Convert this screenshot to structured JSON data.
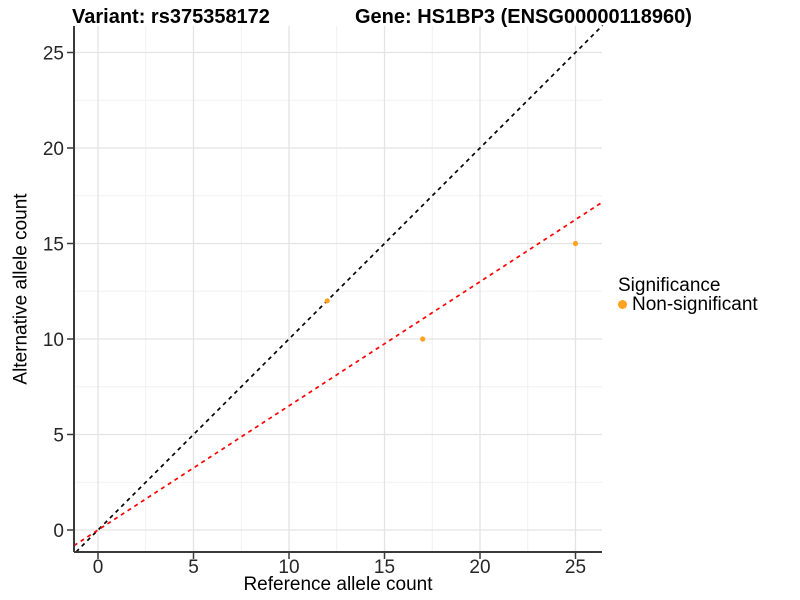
{
  "header": {
    "variant_title": "Variant: rs375358172",
    "gene_title": "Gene: HS1BP3 (ENSG00000118960)"
  },
  "legend": {
    "title": "Significance",
    "items": [
      {
        "label": "Non-significant",
        "color": "#FFA320"
      }
    ]
  },
  "chart_data": {
    "type": "scatter",
    "title": "Variant: rs375358172 — Gene: HS1BP3 (ENSG00000118960)",
    "xlabel": "Reference allele count",
    "ylabel": "Alternative allele count",
    "x_ticks": [
      0,
      5,
      10,
      15,
      20,
      25
    ],
    "y_ticks": [
      0,
      5,
      10,
      15,
      20,
      25
    ],
    "xlim": [
      -1.26,
      26.42
    ],
    "ylim": [
      -1.15,
      26.42
    ],
    "grid": true,
    "legend_position": "right",
    "series": [
      {
        "name": "Non-significant",
        "color": "#FFA320",
        "points": [
          [
            12,
            12
          ],
          [
            17,
            10
          ],
          [
            25,
            15
          ]
        ]
      }
    ],
    "reference_lines": [
      {
        "name": "identity-line",
        "slope": 1,
        "intercept": 0,
        "color": "#000000",
        "style": "dashed"
      },
      {
        "name": "expected-ratio-line",
        "slope": 0.65,
        "intercept": 0,
        "color": "#FF0000",
        "style": "dashed"
      }
    ]
  },
  "colors": {
    "background": "#FFFFFF",
    "grid_major": "#E3E3E3",
    "grid_minor": "#F1F1F1",
    "axis": "#3A3A3A",
    "tick_text": "#262626"
  }
}
